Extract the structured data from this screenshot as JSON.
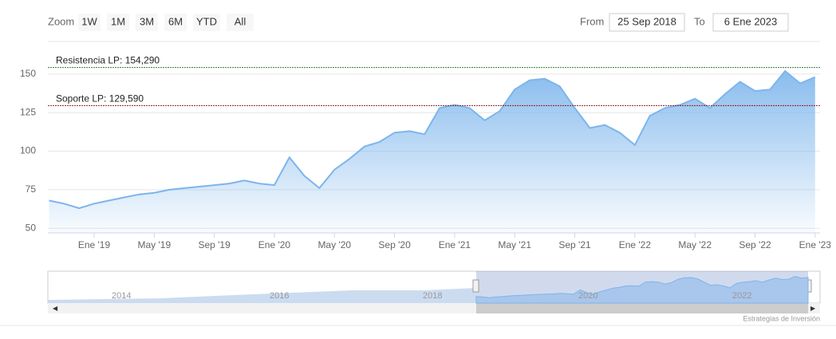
{
  "chart_data": {
    "type": "area",
    "range_selector": {
      "label": "Zoom",
      "buttons": [
        "1W",
        "1M",
        "3M",
        "6M",
        "YTD",
        "All"
      ],
      "from_label": "From",
      "from": "25 Sep 2018",
      "to_label": "To",
      "to": "6 Ene 2023"
    },
    "x": [
      "2018-10",
      "2018-11",
      "2018-12",
      "2019-01",
      "2019-02",
      "2019-03",
      "2019-04",
      "2019-05",
      "2019-06",
      "2019-07",
      "2019-08",
      "2019-09",
      "2019-10",
      "2019-11",
      "2019-12",
      "2020-01",
      "2020-02",
      "2020-03",
      "2020-04",
      "2020-05",
      "2020-06",
      "2020-07",
      "2020-08",
      "2020-09",
      "2020-10",
      "2020-11",
      "2020-12",
      "2021-01",
      "2021-02",
      "2021-03",
      "2021-04",
      "2021-05",
      "2021-06",
      "2021-07",
      "2021-08",
      "2021-09",
      "2021-10",
      "2021-11",
      "2021-12",
      "2022-01",
      "2022-02",
      "2022-03",
      "2022-04",
      "2022-05",
      "2022-06",
      "2022-07",
      "2022-08",
      "2022-09",
      "2022-10",
      "2022-11",
      "2022-12",
      "2023-01"
    ],
    "series": [
      {
        "color": "#7cb5ec",
        "values": [
          68,
          66,
          63,
          66,
          68,
          70,
          72,
          73,
          75,
          76,
          77,
          78,
          79,
          81,
          79,
          78,
          96,
          84,
          76,
          88,
          95,
          103,
          106,
          112,
          113,
          111,
          128,
          130,
          128,
          120,
          126,
          140,
          146,
          147,
          142,
          128,
          115,
          117,
          112,
          104,
          123,
          128,
          130,
          134,
          128,
          137,
          145,
          139,
          140,
          152,
          144,
          148
        ]
      }
    ],
    "xticks": [
      {
        "value": "2019-01",
        "label": "Ene '19"
      },
      {
        "value": "2019-05",
        "label": "May '19"
      },
      {
        "value": "2019-09",
        "label": "Sep '19"
      },
      {
        "value": "2020-01",
        "label": "Ene '20"
      },
      {
        "value": "2020-05",
        "label": "May '20"
      },
      {
        "value": "2020-09",
        "label": "Sep '20"
      },
      {
        "value": "2021-01",
        "label": "Ene '21"
      },
      {
        "value": "2021-05",
        "label": "May '21"
      },
      {
        "value": "2021-09",
        "label": "Sep '21"
      },
      {
        "value": "2022-01",
        "label": "Ene '22"
      },
      {
        "value": "2022-05",
        "label": "May '22"
      },
      {
        "value": "2022-09",
        "label": "Sep '22"
      },
      {
        "value": "2023-01",
        "label": "Ene '23"
      }
    ],
    "ylim": [
      47,
      167
    ],
    "yticks": [
      50,
      75,
      100,
      125,
      150
    ],
    "grid": true,
    "plot_lines": [
      {
        "value": 154.29,
        "label": "Resistencia LP: 154,290",
        "color": "#2e7d32"
      },
      {
        "value": 129.59,
        "label": "Soporte LP: 129,590",
        "color": "#8b1a1a"
      }
    ],
    "navigator_labels": [
      "2014",
      "2016",
      "2018",
      "2020",
      "2022"
    ],
    "credits": "Estrategias de Inversión"
  }
}
